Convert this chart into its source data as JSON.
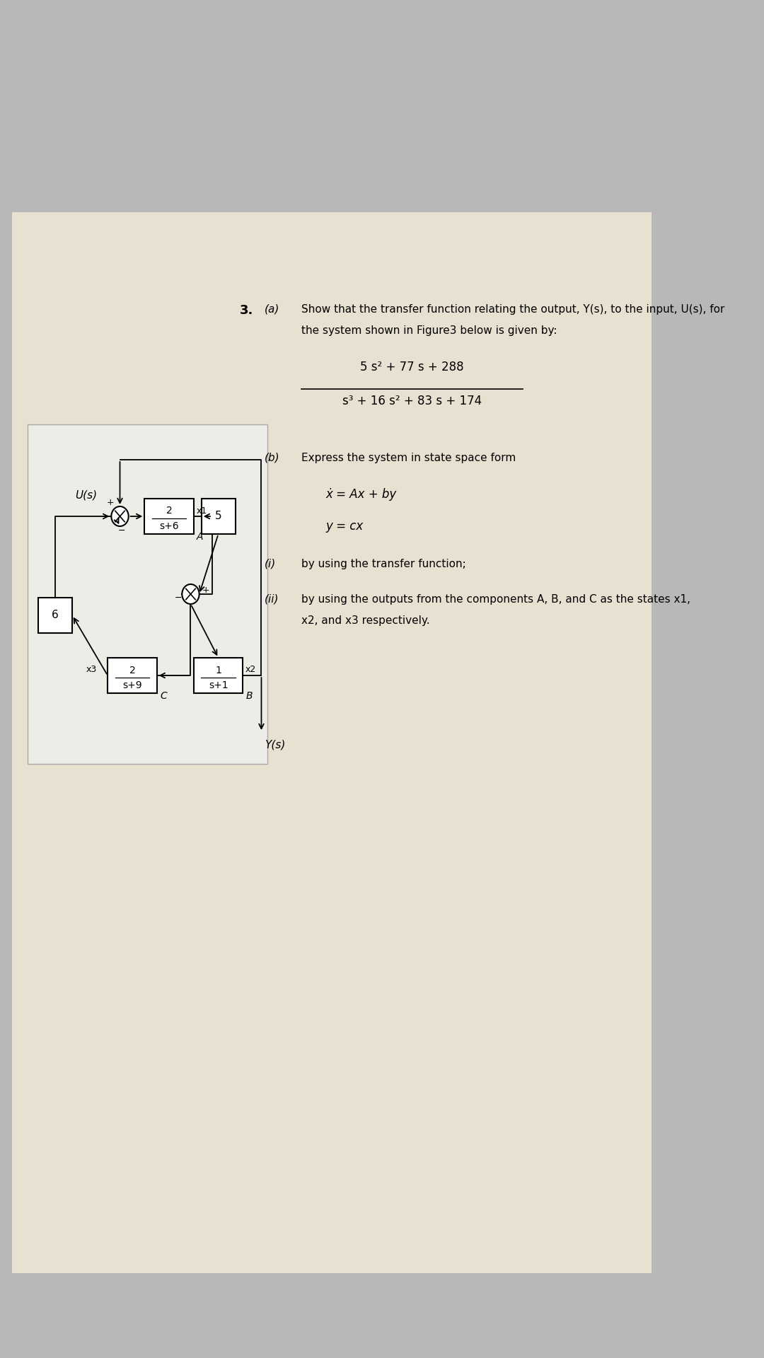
{
  "bg_color": "#b8b8b8",
  "paper_color": "#e8e0d0",
  "diagram_bg": "#e8e4dc",
  "white_color": "#ffffff",
  "title_num": "3.",
  "part_a_label": "(a)",
  "part_a_text1": "Show that the transfer function relating the output, Y(s), to the input, U(s), for",
  "part_a_text2": "the system shown in Figure3 below is given by:",
  "tf_numerator": "5 s² + 77 s + 288",
  "tf_denominator": "s³ + 16 s² + 83 s + 174",
  "part_b_label": "(b)",
  "part_b_text": "Express the system in state space form",
  "ss_dot_x": "ẋ = Ax + by",
  "ss_y": "y = cx",
  "part_i_label": "(i)",
  "part_i_text": "by using the transfer function;",
  "part_ii_label": "(ii)",
  "part_ii_text1": "by using the outputs from the components A, B, and C as the states x1,",
  "part_ii_text2": "x2, and x3 respectively.",
  "Us_label": "U(s)",
  "Ys_label": "Y(s)",
  "x1_label": "x1",
  "x2_label": "x2",
  "x3_label": "x3",
  "block_A_num": "2",
  "block_A_den": "s+6",
  "block_A_name": "A",
  "block_B_num": "1",
  "block_B_den": "s+1",
  "block_B_name": "B",
  "block_C_num": "2",
  "block_C_den": "s+9",
  "block_C_name": "C",
  "block_5": "5",
  "block_6": "6",
  "font_size_main": 11,
  "font_size_label": 11,
  "font_size_block": 10,
  "font_size_small": 9
}
